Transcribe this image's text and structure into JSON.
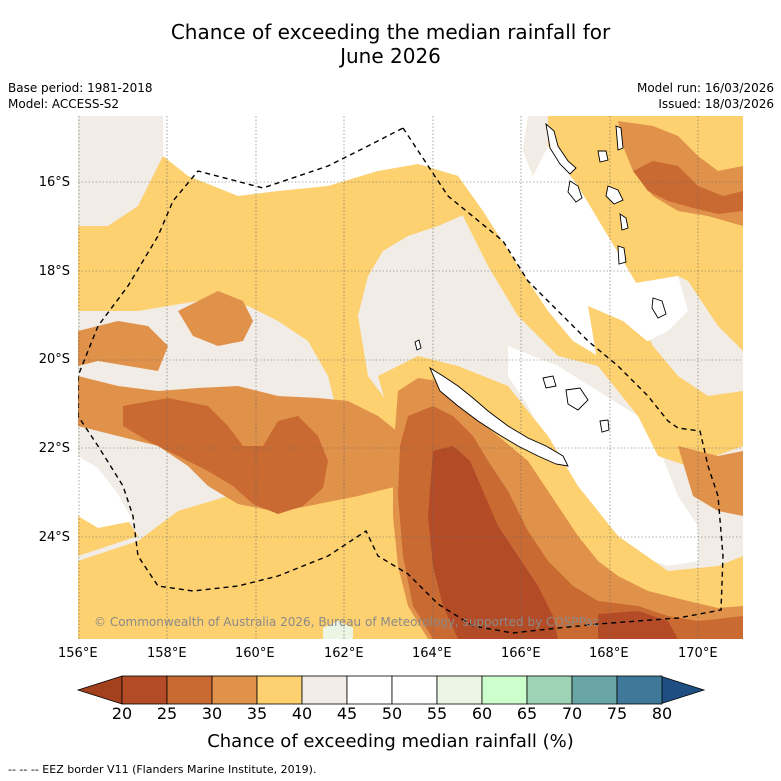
{
  "title": {
    "line1": "Chance of exceeding the median rainfall for",
    "line2": "June 2026"
  },
  "meta": {
    "base_period": "Base period: 1981-2018",
    "model": "Model: ACCESS-S2",
    "model_run": "Model run: 16/03/2026",
    "issued": "Issued: 18/03/2026"
  },
  "map": {
    "copyright": "© Commonwealth of Australia 2026, Bureau of Meteorology, supported by COSPPac",
    "lat_labels": [
      "16°S",
      "18°S",
      "20°S",
      "22°S",
      "24°S"
    ],
    "lon_labels": [
      "156°E",
      "158°E",
      "160°E",
      "162°E",
      "164°E",
      "166°E",
      "168°E",
      "170°E"
    ]
  },
  "colorbar": {
    "label": "Chance of exceeding median rainfall (%)",
    "ticks": [
      "20",
      "25",
      "30",
      "35",
      "40",
      "45",
      "50",
      "55",
      "60",
      "65",
      "70",
      "75",
      "80"
    ],
    "colors": [
      "#b34c26",
      "#c96a32",
      "#e0914a",
      "#fdd070",
      "#f1ede6",
      "#ffffff",
      "#ffffff",
      "#eaf5e4",
      "#ccffcc",
      "#9ed3b6",
      "#6aa6a6",
      "#3f7899"
    ],
    "under_color": "#a3401e",
    "over_color": "#1f4f82"
  },
  "legend": {
    "eez": "--  --  -- EEZ border V11 (Flanders Marine Institute, 2019)."
  }
}
